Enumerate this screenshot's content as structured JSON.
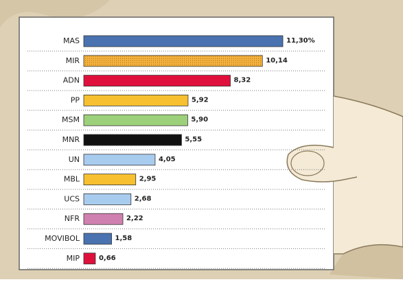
{
  "chart_data": {
    "type": "bar",
    "categories": [
      "MAS",
      "MIR",
      "ADN",
      "PP",
      "MSM",
      "MNR",
      "UN",
      "MBL",
      "UCS",
      "NFR",
      "MOVIBOL",
      "MIP"
    ],
    "values": [
      11.3,
      10.14,
      8.32,
      5.92,
      5.9,
      5.55,
      4.05,
      2.95,
      2.68,
      2.22,
      1.58,
      0.66
    ],
    "value_labels": [
      "11,30%",
      "10,14",
      "8,32",
      "5,92",
      "5,90",
      "5,55",
      "4,05",
      "2,95",
      "2,68",
      "2,22",
      "1,58",
      "0,66"
    ],
    "colors": [
      "#4a72b0",
      "#f3b23e",
      "#e0103c",
      "#f6c030",
      "#9dd07a",
      "#111111",
      "#a8ccee",
      "#f6c030",
      "#a8ccee",
      "#d080b0",
      "#4a72b0",
      "#e0103c"
    ]
  }
}
